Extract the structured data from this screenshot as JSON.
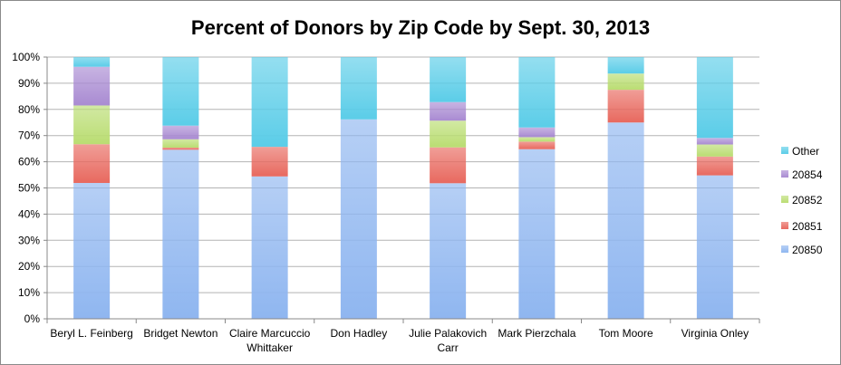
{
  "chart_data": {
    "type": "bar",
    "stacked": true,
    "title": "Percent of Donors by Zip Code by Sept. 30, 2013",
    "xlabel": "",
    "ylabel": "",
    "ylim": [
      0,
      100
    ],
    "yticks": [
      "0%",
      "10%",
      "20%",
      "30%",
      "40%",
      "50%",
      "60%",
      "70%",
      "80%",
      "90%",
      "100%"
    ],
    "grid": true,
    "legend_position": "right",
    "categories": [
      [
        "Beryl L. Feinberg"
      ],
      [
        "Bridget Newton"
      ],
      [
        "Claire Marcuccio",
        "Whittaker"
      ],
      [
        "Don Hadley"
      ],
      [
        "Julie Palakovich",
        "Carr"
      ],
      [
        "Mark Pierzchala"
      ],
      [
        "Tom Moore"
      ],
      [
        "Virginia Onley"
      ]
    ],
    "series": [
      {
        "name": "20850",
        "color": "#8fb6f0",
        "values": [
          51.9,
          64.6,
          54.4,
          76.2,
          51.8,
          64.8,
          75.0,
          54.8
        ]
      },
      {
        "name": "20851",
        "color": "#e8695f",
        "values": [
          14.8,
          0.8,
          11.3,
          0,
          13.7,
          2.9,
          12.5,
          7.2
        ]
      },
      {
        "name": "20852",
        "color": "#badd72",
        "values": [
          14.8,
          3.2,
          0,
          0,
          10.2,
          1.7,
          6.2,
          4.6
        ]
      },
      {
        "name": "20854",
        "color": "#a98bd2",
        "values": [
          14.8,
          5.2,
          0,
          0,
          7.1,
          3.7,
          0,
          2.5
        ]
      },
      {
        "name": "Other",
        "color": "#5bcde8",
        "values": [
          3.7,
          26.2,
          34.3,
          23.8,
          17.2,
          26.9,
          6.3,
          30.9
        ]
      }
    ]
  }
}
